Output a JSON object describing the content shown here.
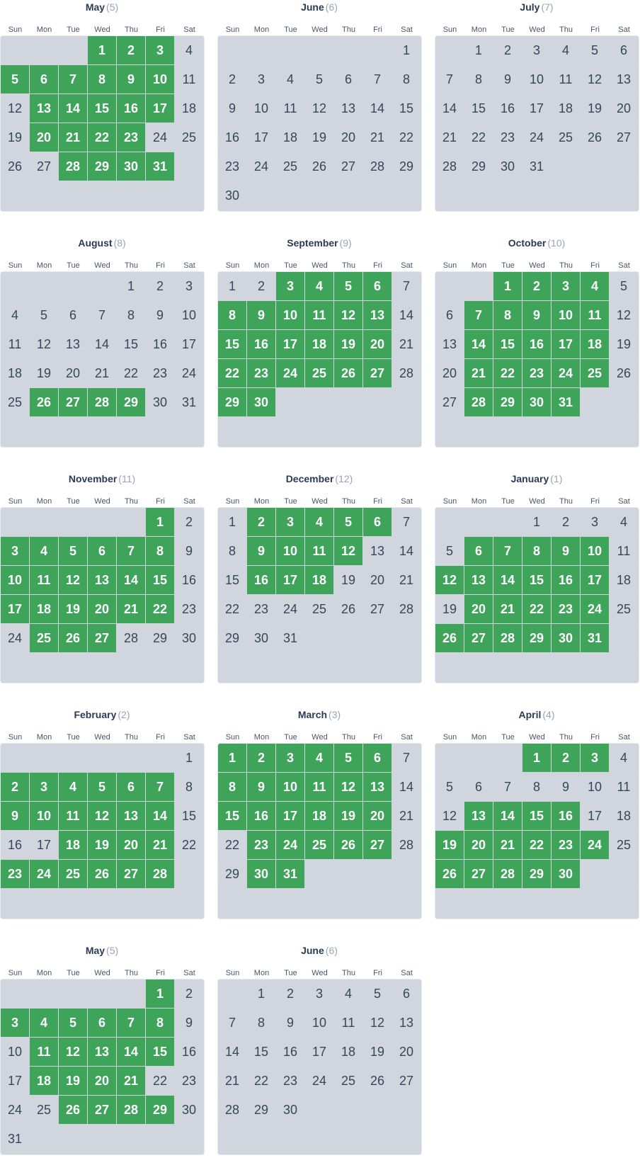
{
  "colors": {
    "selected": "#3ea45a",
    "empty": "#d1d6de"
  },
  "weekdays": [
    "Sun",
    "Mon",
    "Tue",
    "Wed",
    "Thu",
    "Fri",
    "Sat"
  ],
  "months": [
    {
      "name": "May",
      "number": "(5)",
      "first_weekday": 3,
      "days": 31,
      "selected": [
        1,
        2,
        3,
        5,
        6,
        7,
        8,
        9,
        10,
        13,
        14,
        15,
        16,
        17,
        20,
        21,
        22,
        23,
        28,
        29,
        30,
        31
      ]
    },
    {
      "name": "June",
      "number": "(6)",
      "first_weekday": 6,
      "days": 30,
      "selected": []
    },
    {
      "name": "July",
      "number": "(7)",
      "first_weekday": 1,
      "days": 31,
      "selected": []
    },
    {
      "name": "August",
      "number": "(8)",
      "first_weekday": 4,
      "days": 31,
      "selected": [
        26,
        27,
        28,
        29
      ]
    },
    {
      "name": "September",
      "number": "(9)",
      "first_weekday": 0,
      "days": 30,
      "selected": [
        3,
        4,
        5,
        6,
        8,
        9,
        10,
        11,
        12,
        13,
        15,
        16,
        17,
        18,
        19,
        20,
        22,
        23,
        24,
        25,
        26,
        27,
        29,
        30
      ]
    },
    {
      "name": "October",
      "number": "(10)",
      "first_weekday": 2,
      "days": 31,
      "selected": [
        1,
        2,
        3,
        4,
        7,
        8,
        9,
        10,
        11,
        14,
        15,
        16,
        17,
        18,
        21,
        22,
        23,
        24,
        25,
        28,
        29,
        30,
        31
      ]
    },
    {
      "name": "November",
      "number": "(11)",
      "first_weekday": 5,
      "days": 30,
      "selected": [
        1,
        3,
        4,
        5,
        6,
        7,
        8,
        10,
        11,
        12,
        13,
        14,
        15,
        17,
        18,
        19,
        20,
        21,
        22,
        25,
        26,
        27
      ]
    },
    {
      "name": "December",
      "number": "(12)",
      "first_weekday": 0,
      "days": 31,
      "selected": [
        2,
        3,
        4,
        5,
        6,
        9,
        10,
        11,
        12,
        16,
        17,
        18
      ]
    },
    {
      "name": "January",
      "number": "(1)",
      "first_weekday": 3,
      "days": 31,
      "selected": [
        6,
        7,
        8,
        9,
        10,
        12,
        13,
        14,
        15,
        16,
        17,
        20,
        21,
        22,
        23,
        24,
        26,
        27,
        28,
        29,
        30,
        31
      ]
    },
    {
      "name": "February",
      "number": "(2)",
      "first_weekday": 6,
      "days": 28,
      "selected": [
        2,
        3,
        4,
        5,
        6,
        7,
        9,
        10,
        11,
        12,
        13,
        14,
        18,
        19,
        20,
        21,
        23,
        24,
        25,
        26,
        27,
        28
      ]
    },
    {
      "name": "March",
      "number": "(3)",
      "first_weekday": 0,
      "days": 31,
      "selected": [
        1,
        2,
        3,
        4,
        5,
        6,
        8,
        9,
        10,
        11,
        12,
        13,
        15,
        16,
        17,
        18,
        19,
        20,
        23,
        24,
        25,
        26,
        27,
        30,
        31
      ]
    },
    {
      "name": "April",
      "number": "(4)",
      "first_weekday": 3,
      "days": 30,
      "selected": [
        1,
        2,
        3,
        13,
        14,
        15,
        16,
        19,
        20,
        21,
        22,
        23,
        24,
        26,
        27,
        28,
        29,
        30
      ]
    },
    {
      "name": "May",
      "number": "(5)",
      "first_weekday": 5,
      "days": 31,
      "selected": [
        1,
        3,
        4,
        5,
        6,
        7,
        8,
        11,
        12,
        13,
        14,
        15,
        18,
        19,
        20,
        21,
        26,
        27,
        28,
        29
      ]
    },
    {
      "name": "June",
      "number": "(6)",
      "first_weekday": 1,
      "days": 30,
      "selected": []
    }
  ]
}
